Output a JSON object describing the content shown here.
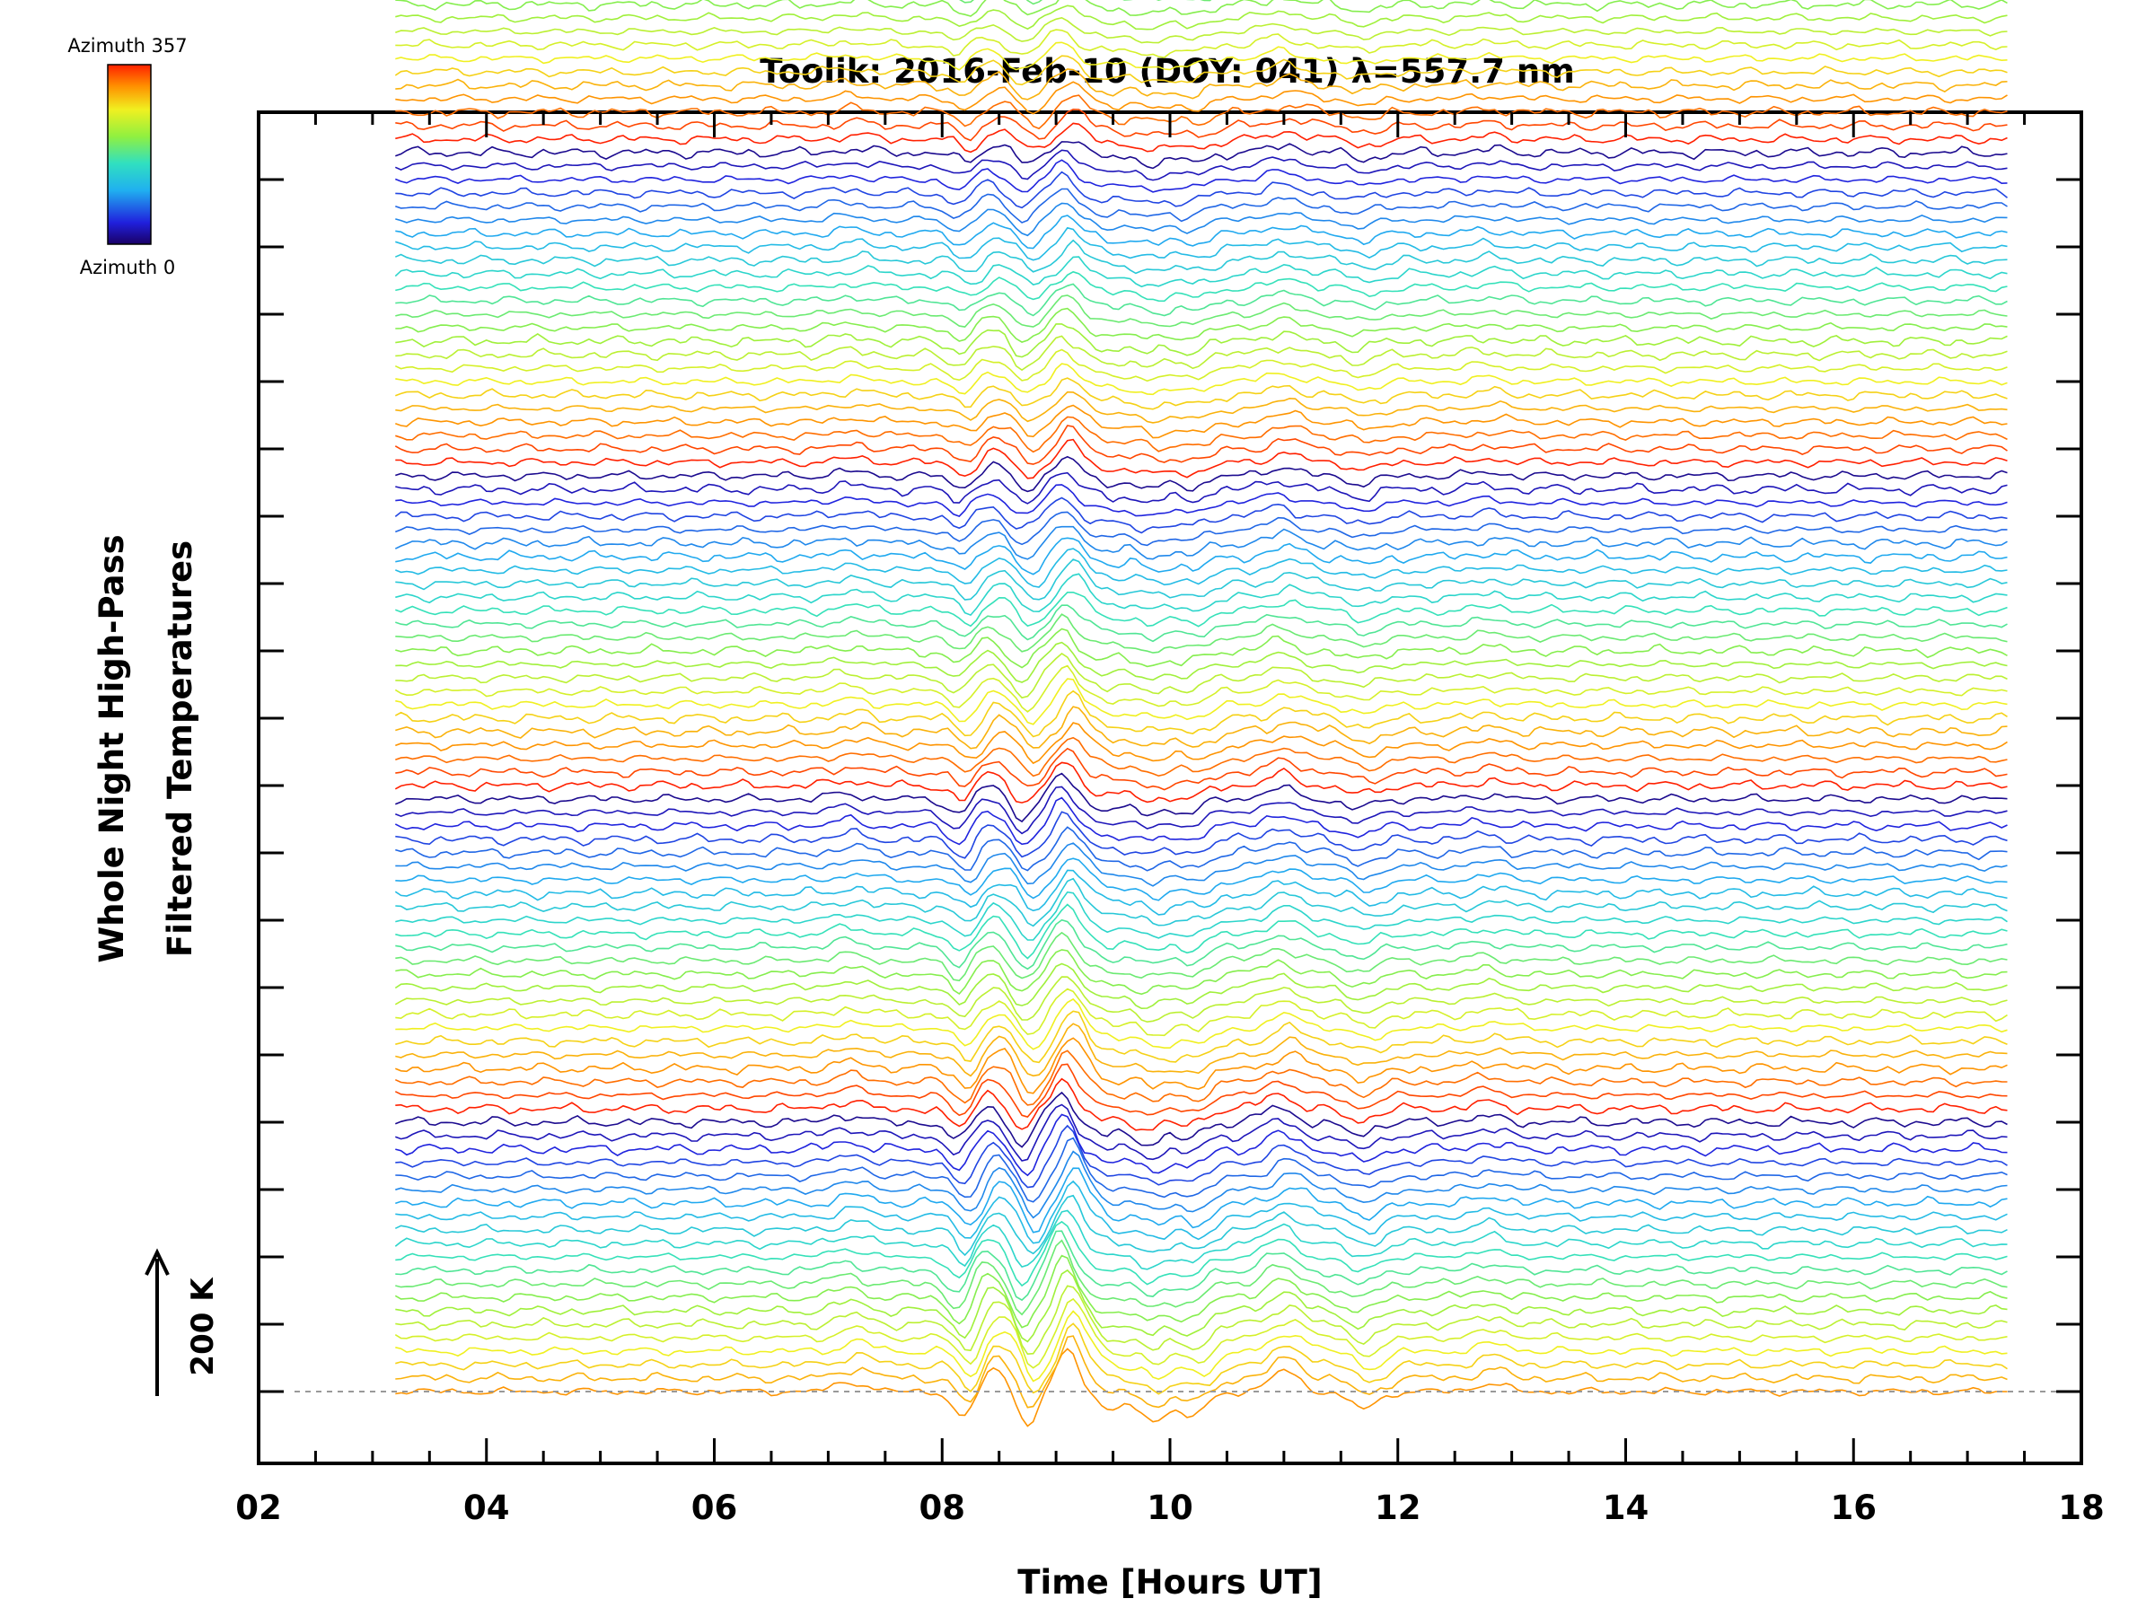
{
  "chart_data": {
    "type": "line",
    "title": "Toolik: 2016-Feb-10 (DOY: 041) λ=557.7 nm",
    "xlabel": "Time [Hours UT]",
    "ylabel_line1": "Whole Night High-Pass",
    "ylabel_line2": "Filtered Temperatures",
    "xlim": [
      2,
      18
    ],
    "x_ticks": [
      "02",
      "04",
      "06",
      "08",
      "10",
      "12",
      "14",
      "16",
      "18"
    ],
    "data_time_range": [
      3.2,
      17.35
    ],
    "n_traces": 115,
    "trace_offset_K": 20,
    "scale_bar_label": "200 K",
    "scale_bar_value_K": 200,
    "colorbar": {
      "top_label": "Azimuth 357",
      "bottom_label": "Azimuth 0",
      "azimuth_range": [
        0,
        357
      ],
      "colormap": "rainbow (blue to red)"
    },
    "features": [
      {
        "time": 7.2,
        "amplitude_K": 15,
        "sign": "peak"
      },
      {
        "time": 8.2,
        "amplitude_K": -45,
        "sign": "trough"
      },
      {
        "time": 8.45,
        "amplitude_K": 35,
        "sign": "peak"
      },
      {
        "time": 8.75,
        "amplitude_K": -50,
        "sign": "trough"
      },
      {
        "time": 9.1,
        "amplitude_K": 65,
        "sign": "peak"
      },
      {
        "time": 9.5,
        "amplitude_K": -25,
        "sign": "trough"
      },
      {
        "time": 9.85,
        "amplitude_K": -40,
        "sign": "trough"
      },
      {
        "time": 10.2,
        "amplitude_K": -35,
        "sign": "trough"
      },
      {
        "time": 11.0,
        "amplitude_K": 30,
        "sign": "peak"
      },
      {
        "time": 11.7,
        "amplitude_K": -25,
        "sign": "trough"
      },
      {
        "time": 12.8,
        "amplitude_K": 12,
        "sign": "peak"
      }
    ],
    "baseline_style": "dashed gray line at lowest trace offset"
  }
}
